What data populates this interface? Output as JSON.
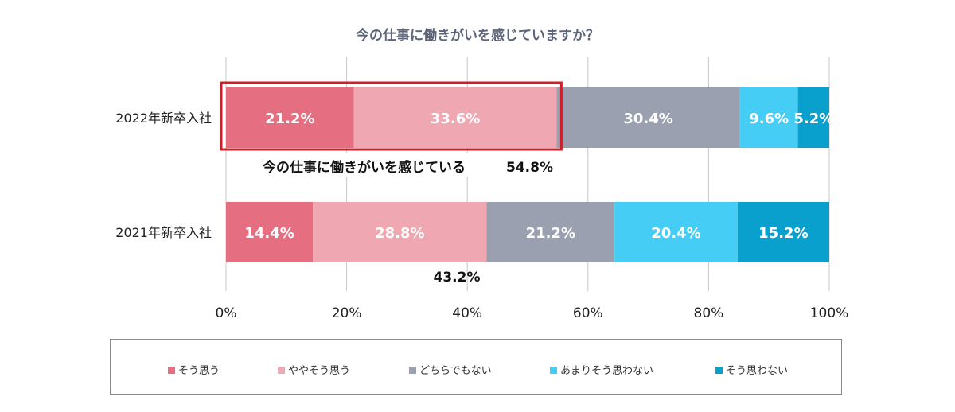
{
  "chart_data": {
    "type": "bar",
    "orientation": "horizontal",
    "stacked": true,
    "title": "今の仕事に働きがいを感じていますか？",
    "categories": [
      "2022年新卒入社",
      "2021年新卒入社"
    ],
    "series": [
      {
        "name": "そう思う",
        "color": "#e56f80",
        "values": [
          21.2,
          14.4
        ]
      },
      {
        "name": "ややそう思う",
        "color": "#efa8b2",
        "values": [
          33.6,
          28.8
        ]
      },
      {
        "name": "どちらでもない",
        "color": "#9aa0b0",
        "values": [
          30.4,
          21.2
        ]
      },
      {
        "name": "あまりそう思わない",
        "color": "#45cdf5",
        "values": [
          9.6,
          20.4
        ]
      },
      {
        "name": "そう思わない",
        "color": "#0aa0cd",
        "values": [
          5.2,
          15.2
        ]
      }
    ],
    "value_labels": [
      [
        "21.2%",
        "33.6%",
        "30.4%",
        "9.6%",
        "5.2%"
      ],
      [
        "14.4%",
        "28.8%",
        "21.2%",
        "20.4%",
        "15.2%"
      ]
    ],
    "xlim": [
      0,
      100
    ],
    "xticks": [
      "0%",
      "20%",
      "40%",
      "60%",
      "80%",
      "100%"
    ],
    "grid": true,
    "legend_position": "bottom",
    "annotations": {
      "highlight_text": "今の仕事に働きがいを感じている",
      "highlight_value": "54.8%",
      "second_value": "43.2%"
    }
  }
}
